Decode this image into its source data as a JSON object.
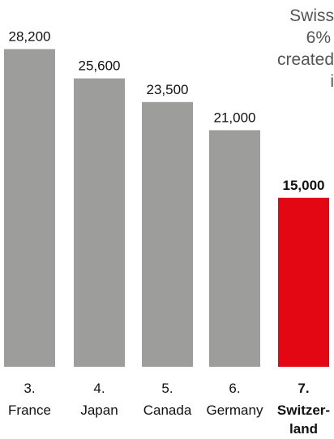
{
  "note": {
    "lines": [
      "Swiss",
      "6%",
      "created",
      "i"
    ]
  },
  "chart_data": {
    "type": "bar",
    "title": "",
    "xlabel": "",
    "ylabel": "",
    "ylim": [
      0,
      30000
    ],
    "categories": [
      {
        "rank": "3.",
        "name": "France",
        "value_label": "28,200",
        "highlight": false
      },
      {
        "rank": "4.",
        "name": "Japan",
        "value_label": "25,600",
        "highlight": false
      },
      {
        "rank": "5.",
        "name": "Canada",
        "value_label": "23,500",
        "highlight": false
      },
      {
        "rank": "6.",
        "name": "Germany",
        "value_label": "21,000",
        "highlight": false
      },
      {
        "rank": "7.",
        "name": "Switzer-\nland",
        "value_label": "15,000",
        "highlight": true
      }
    ],
    "values": [
      28200,
      25600,
      23500,
      21000,
      15000
    ],
    "colors": {
      "bar": "#9d9d9c",
      "highlight": "#e30613",
      "text": "#111111"
    }
  }
}
